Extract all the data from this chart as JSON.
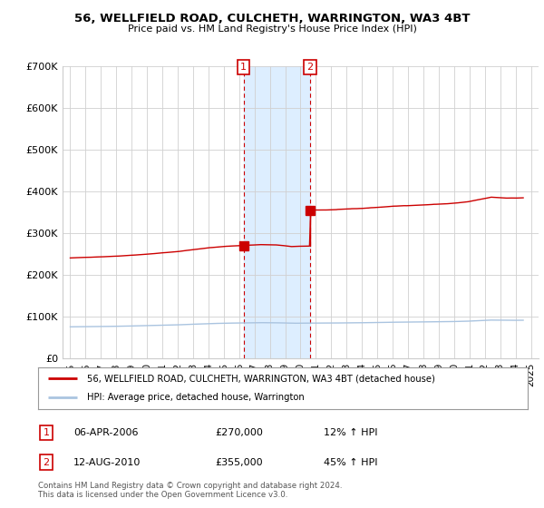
{
  "title": "56, WELLFIELD ROAD, CULCHETH, WARRINGTON, WA3 4BT",
  "subtitle": "Price paid vs. HM Land Registry's House Price Index (HPI)",
  "footer": "Contains HM Land Registry data © Crown copyright and database right 2024.\nThis data is licensed under the Open Government Licence v3.0.",
  "legend_line1": "56, WELLFIELD ROAD, CULCHETH, WARRINGTON, WA3 4BT (detached house)",
  "legend_line2": "HPI: Average price, detached house, Warrington",
  "annotation1_label": "1",
  "annotation1_date": "06-APR-2006",
  "annotation1_price": "£270,000",
  "annotation1_change": "12% ↑ HPI",
  "annotation1_year": 2006.29,
  "annotation1_value": 270000,
  "annotation2_label": "2",
  "annotation2_date": "12-AUG-2010",
  "annotation2_price": "£355,000",
  "annotation2_change": "45% ↑ HPI",
  "annotation2_year": 2010.62,
  "annotation2_value": 355000,
  "hpi_color": "#aac4e0",
  "price_color": "#cc0000",
  "highlight_color": "#ddeeff",
  "background_color": "#ffffff",
  "ylim": [
    0,
    700000
  ],
  "yticks": [
    0,
    100000,
    200000,
    300000,
    400000,
    500000,
    600000,
    700000
  ],
  "ytick_labels": [
    "£0",
    "£100K",
    "£200K",
    "£300K",
    "£400K",
    "£500K",
    "£600K",
    "£700K"
  ],
  "xtick_years": [
    1995,
    1996,
    1997,
    1998,
    1999,
    2000,
    2001,
    2002,
    2003,
    2004,
    2005,
    2006,
    2007,
    2008,
    2009,
    2010,
    2011,
    2012,
    2013,
    2014,
    2015,
    2016,
    2017,
    2018,
    2019,
    2020,
    2021,
    2022,
    2023,
    2024,
    2025
  ]
}
